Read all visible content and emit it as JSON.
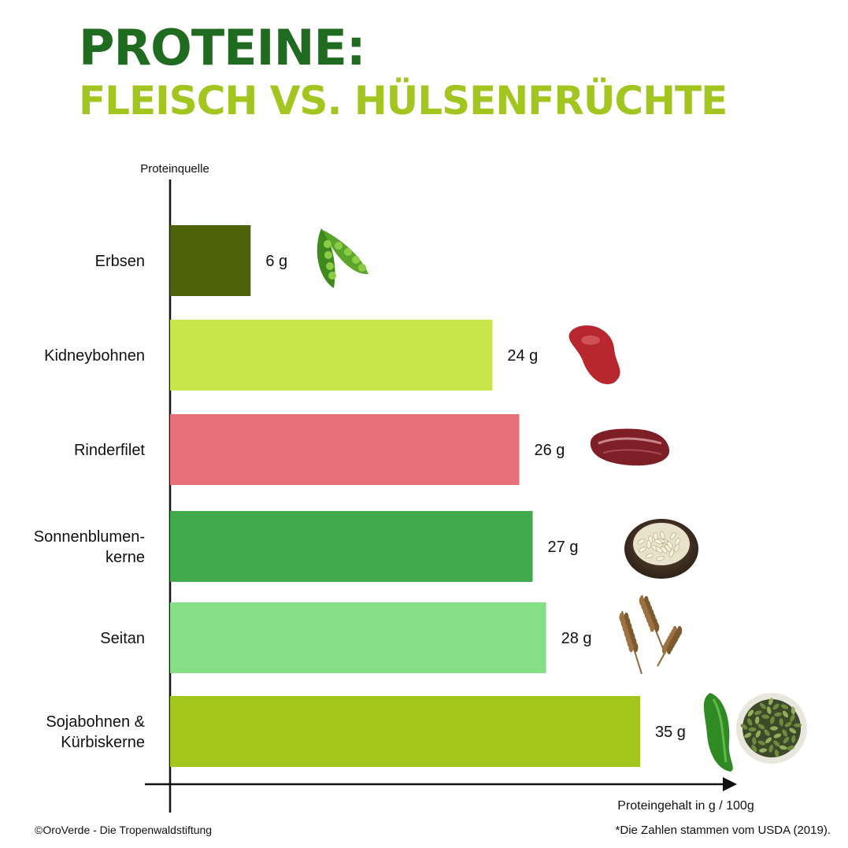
{
  "header": {
    "title": "PROTEINE:",
    "subtitle": "FLEISCH VS. HÜLSENFRÜCHTE"
  },
  "chart_data": {
    "type": "bar",
    "orientation": "horizontal",
    "ylabel": "Proteinquelle",
    "xlabel": "Proteingehalt in g / 100g",
    "xlim": [
      0,
      40
    ],
    "grid": false,
    "categories": [
      [
        "Erbsen"
      ],
      [
        "Kidneybohnen"
      ],
      [
        "Rinderfilet"
      ],
      [
        "Sonnenblumen-",
        "kerne"
      ],
      [
        "Seitan"
      ],
      [
        "Sojabohnen &",
        "Kürbiskerne"
      ]
    ],
    "values": [
      6,
      24,
      26,
      27,
      28,
      35
    ],
    "value_labels": [
      "6 g",
      "24 g",
      "26 g",
      "27 g",
      "28 g",
      "35 g"
    ],
    "colors": [
      "#4c620a",
      "#c8e64a",
      "#e8707a",
      "#41aa4b",
      "#86df86",
      "#a2c61c"
    ],
    "icons": [
      [
        "pea-pod-icon"
      ],
      [
        "kidney-bean-icon"
      ],
      [
        "beef-steak-icon"
      ],
      [
        "sunflower-seeds-bowl-icon"
      ],
      [
        "wheat-ears-icon"
      ],
      [
        "soybean-pod-icon",
        "pumpkin-seeds-bowl-icon"
      ]
    ]
  },
  "footer": {
    "copyright": "©OroVerde - Die Tropenwaldstiftung",
    "source": "*Die Zahlen stammen vom USDA (2019)."
  }
}
